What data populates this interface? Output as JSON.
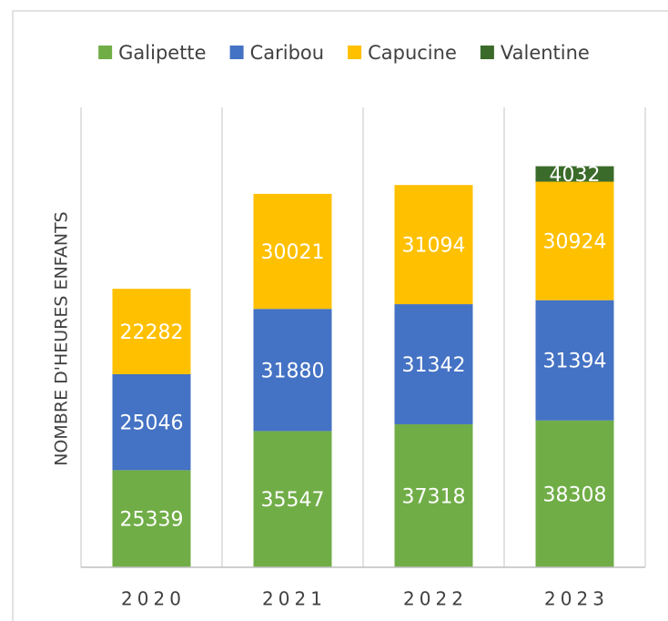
{
  "chart_data": {
    "type": "stacked_bar",
    "y_label": "NOMBRE D'HEURES ENFANTS",
    "categories": [
      "2020",
      "2021",
      "2022",
      "2023"
    ],
    "series": [
      {
        "name": "Galipette",
        "color": "#70ad47",
        "values": [
          25339,
          35547,
          37318,
          38308
        ]
      },
      {
        "name": "Caribou",
        "color": "#4472c4",
        "values": [
          25046,
          31880,
          31342,
          31394
        ]
      },
      {
        "name": "Capucine",
        "color": "#ffc000",
        "values": [
          22282,
          30021,
          31094,
          30924
        ]
      },
      {
        "name": "Valentine",
        "color": "#3b6b2a",
        "values": [
          null,
          null,
          null,
          4032
        ]
      }
    ],
    "ylim": [
      0,
      120000
    ],
    "legend": "top"
  }
}
